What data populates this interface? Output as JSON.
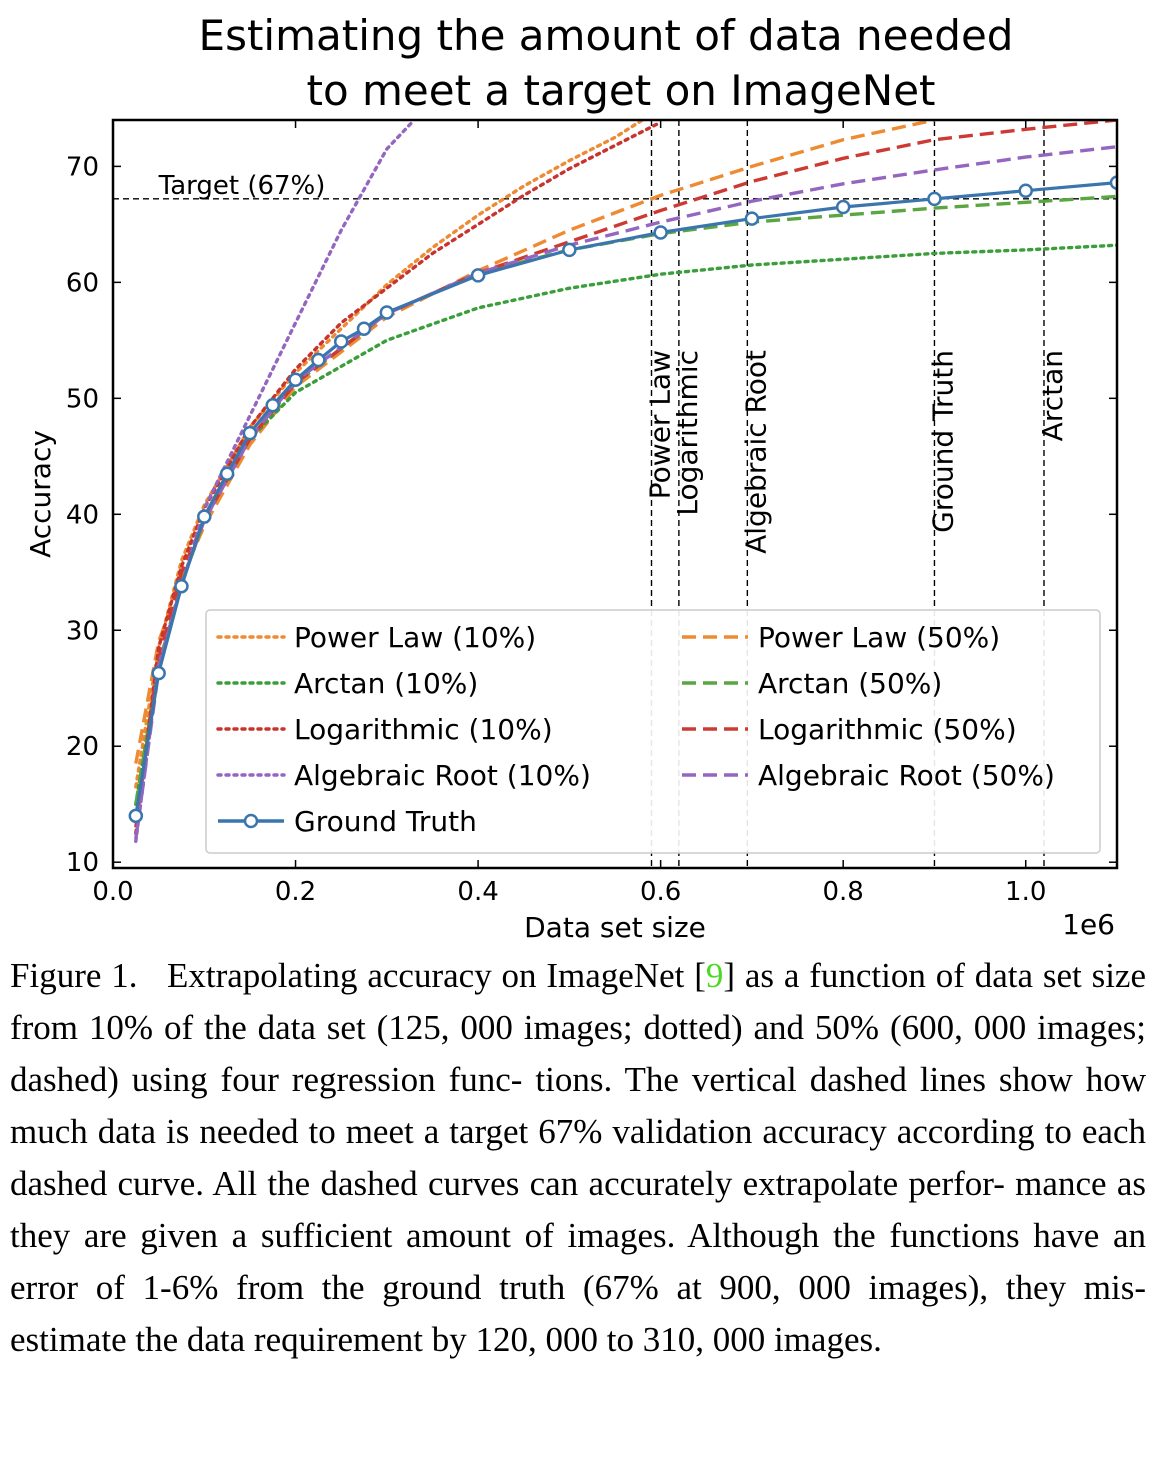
{
  "chart_data": {
    "type": "line",
    "title_line1": "Estimating the amount of data needed",
    "title_line2": "to meet a target on ImageNet",
    "xlabel": "Data set size",
    "ylabel": "Accuracy",
    "x_offset_label": "1e6",
    "xlim": [
      0,
      1100000
    ],
    "ylim": [
      9.5,
      74
    ],
    "x_ticks": [
      0,
      200000,
      400000,
      600000,
      800000,
      1000000
    ],
    "x_tick_labels": [
      "0.0",
      "0.2",
      "0.4",
      "0.6",
      "0.8",
      "1.0"
    ],
    "y_ticks": [
      10,
      20,
      30,
      40,
      50,
      60,
      70
    ],
    "y_tick_labels": [
      "10",
      "20",
      "30",
      "40",
      "50",
      "60",
      "70"
    ],
    "grid": false,
    "legend_position": "lower-right",
    "target": {
      "y": 67.2,
      "label": "Target (67%)"
    },
    "vlines": [
      {
        "x": 590000,
        "label": "Power Law"
      },
      {
        "x": 620000,
        "label": "Logarithmic"
      },
      {
        "x": 695000,
        "label": "Algebraic Root"
      },
      {
        "x": 900000,
        "label": "Ground Truth"
      },
      {
        "x": 1020000,
        "label": "Arctan"
      }
    ],
    "series": [
      {
        "name": "Power Law (10%)",
        "color": "#ee8a32",
        "style": "dotted",
        "x": [
          25000,
          50000,
          75000,
          100000,
          150000,
          200000,
          250000,
          300000,
          350000,
          400000,
          450000,
          500000,
          550000,
          580000
        ],
        "y": [
          16.5,
          28.5,
          36.0,
          40.8,
          47.5,
          52.2,
          56.0,
          59.8,
          63.0,
          65.8,
          68.3,
          70.5,
          72.5,
          74.0
        ]
      },
      {
        "name": "Power Law (50%)",
        "color": "#ee8a32",
        "style": "dashed",
        "x": [
          25000,
          50000,
          75000,
          100000,
          150000,
          200000,
          300000,
          400000,
          500000,
          600000,
          700000,
          800000,
          900000
        ],
        "y": [
          18.5,
          29.0,
          34.5,
          39.0,
          46.0,
          51.0,
          57.0,
          61.0,
          64.5,
          67.5,
          70.0,
          72.3,
          74.0
        ]
      },
      {
        "name": "Arctan (10%)",
        "color": "#3a9e3a",
        "style": "dotted",
        "x": [
          25000,
          50000,
          75000,
          100000,
          150000,
          200000,
          300000,
          400000,
          500000,
          600000,
          700000,
          800000,
          900000,
          1000000,
          1100000
        ],
        "y": [
          15.0,
          27.0,
          34.0,
          39.5,
          46.5,
          50.5,
          55.0,
          57.8,
          59.5,
          60.7,
          61.5,
          62.0,
          62.5,
          62.8,
          63.2
        ]
      },
      {
        "name": "Arctan (50%)",
        "color": "#5aa640",
        "style": "dashed",
        "x": [
          25000,
          50000,
          75000,
          100000,
          150000,
          200000,
          300000,
          400000,
          500000,
          600000,
          700000,
          800000,
          900000,
          1000000,
          1100000
        ],
        "y": [
          15.0,
          27.0,
          34.0,
          39.5,
          46.5,
          51.3,
          57.3,
          60.8,
          62.8,
          64.2,
          65.2,
          65.8,
          66.4,
          66.9,
          67.4
        ]
      },
      {
        "name": "Logarithmic (10%)",
        "color": "#c8332e",
        "style": "dotted",
        "x": [
          25000,
          50000,
          75000,
          100000,
          150000,
          200000,
          250000,
          300000,
          350000,
          400000,
          450000,
          500000,
          550000,
          600000
        ],
        "y": [
          12.5,
          28.5,
          35.5,
          40.5,
          47.5,
          52.5,
          56.5,
          59.5,
          62.5,
          65.0,
          67.5,
          69.8,
          71.8,
          73.8
        ]
      },
      {
        "name": "Logarithmic (50%)",
        "color": "#cc3a33",
        "style": "dashed",
        "x": [
          25000,
          50000,
          75000,
          100000,
          150000,
          200000,
          300000,
          400000,
          500000,
          600000,
          700000,
          800000,
          900000,
          1000000,
          1100000
        ],
        "y": [
          13.0,
          27.5,
          35.0,
          39.5,
          46.5,
          51.3,
          57.3,
          60.8,
          63.5,
          66.2,
          68.7,
          70.7,
          72.3,
          73.2,
          74.0
        ]
      },
      {
        "name": "Algebraic Root (10%)",
        "color": "#9466c0",
        "style": "dotted",
        "x": [
          25000,
          50000,
          100000,
          150000,
          200000,
          250000,
          300000,
          330000
        ],
        "y": [
          11.8,
          27.0,
          40.5,
          48.5,
          56.5,
          64.5,
          71.5,
          74.0
        ]
      },
      {
        "name": "Algebraic Root (50%)",
        "color": "#9466c0",
        "style": "dashed",
        "x": [
          25000,
          50000,
          75000,
          100000,
          150000,
          200000,
          300000,
          400000,
          500000,
          600000,
          700000,
          800000,
          900000,
          1000000,
          1100000
        ],
        "y": [
          12.0,
          26.5,
          34.0,
          39.5,
          46.5,
          51.5,
          57.3,
          60.8,
          63.2,
          65.2,
          67.0,
          68.5,
          69.7,
          70.8,
          71.7
        ]
      },
      {
        "name": "Ground Truth",
        "color": "#3a76ad",
        "style": "solid",
        "markers": true,
        "x": [
          25000,
          50000,
          75000,
          100000,
          125000,
          150000,
          175000,
          200000,
          225000,
          250000,
          275000,
          300000,
          400000,
          500000,
          600000,
          700000,
          800000,
          900000,
          1000000,
          1100000
        ],
        "y": [
          14.0,
          26.3,
          33.8,
          39.8,
          43.5,
          47.0,
          49.4,
          51.6,
          53.3,
          54.9,
          56.0,
          57.4,
          60.6,
          62.8,
          64.3,
          65.5,
          66.5,
          67.2,
          67.9,
          68.6
        ]
      }
    ]
  },
  "caption": {
    "figure_label": "Figure 1.",
    "text_before_ref": "Extrapolating accuracy on ImageNet [",
    "ref": "9",
    "text_after_ref": "] as a function of data set size from 10% of the data set (125, 000 images; dotted) and 50% (600, 000 images; dashed) using four regression func- tions. The vertical dashed lines show how much data is needed to meet a target 67% validation accuracy according to each dashed curve. All the dashed curves can accurately extrapolate perfor- mance as they are given a sufficient amount of images. Although the functions have an error of 1-6% from the ground truth (67% at 900, 000 images), they mis-estimate the data requirement by 120, 000 to 310, 000 images."
  }
}
